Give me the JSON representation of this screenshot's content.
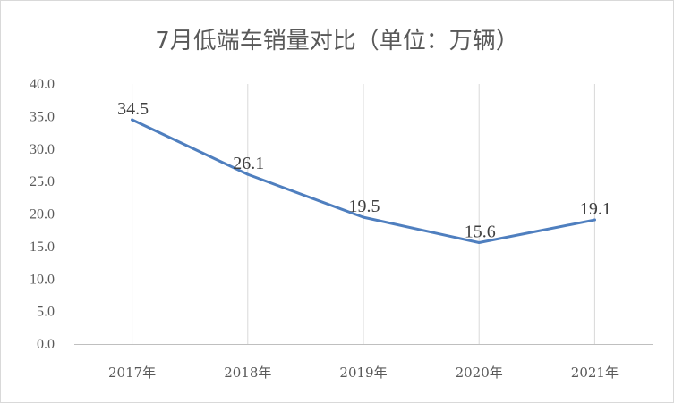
{
  "chart_data": {
    "type": "line",
    "title": "7月低端车销量对比（单位：万辆）",
    "xlabel": "",
    "ylabel": "",
    "categories": [
      "2017年",
      "2018年",
      "2019年",
      "2020年",
      "2021年"
    ],
    "series": [
      {
        "values": [
          34.5,
          26.1,
          19.5,
          15.6,
          19.1
        ]
      }
    ],
    "ylim": [
      0,
      40
    ],
    "yticks": [
      "0.0",
      "5.0",
      "10.0",
      "15.0",
      "20.0",
      "25.0",
      "30.0",
      "35.0",
      "40.0"
    ],
    "data_labels": [
      "34.5",
      "26.1",
      "19.5",
      "15.6",
      "19.1"
    ],
    "grid": "vertical",
    "legend": "none",
    "colors": {
      "line": "#4f7fbf",
      "grid": "#d9d9d9",
      "axis": "#bfbfbf",
      "text": "#595959"
    }
  }
}
